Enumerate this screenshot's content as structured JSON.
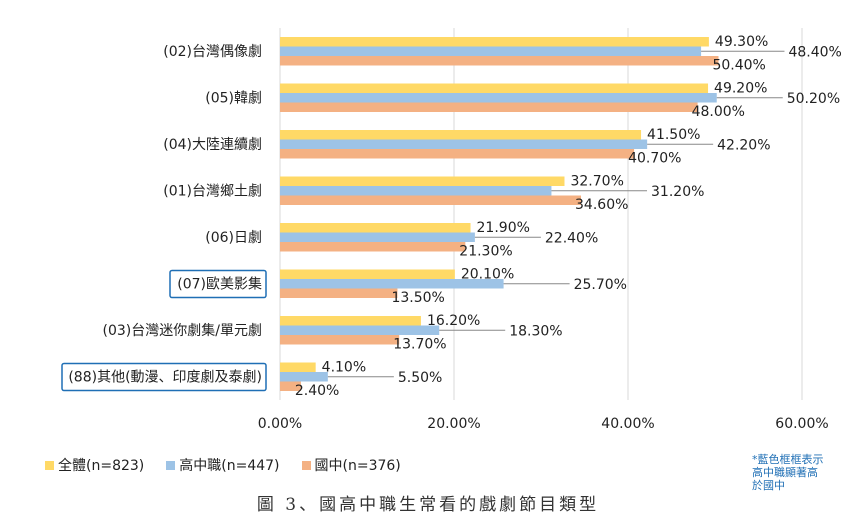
{
  "chart_data": {
    "type": "bar",
    "orientation": "horizontal",
    "title": "圖 3、國高中職生常看的戲劇節目類型",
    "categories": [
      "(02)台灣偶像劇",
      "(05)韓劇",
      "(04)大陸連續劇",
      "(01)台灣鄉土劇",
      "(06)日劇",
      "(07)歐美影集",
      "(03)台灣迷你劇集/單元劇",
      "(88)其他(動漫、印度劇及泰劇)"
    ],
    "highlighted": [
      false,
      false,
      false,
      false,
      false,
      true,
      false,
      true
    ],
    "series": [
      {
        "name": "全體(n=823)",
        "color": "#FFD966",
        "values": [
          49.3,
          49.2,
          41.5,
          32.7,
          21.9,
          20.1,
          16.2,
          4.1
        ],
        "labels": [
          "49.30%",
          "49.20%",
          "41.50%",
          "32.70%",
          "21.90%",
          "20.10%",
          "16.20%",
          "4.10%"
        ]
      },
      {
        "name": "高中職(n=447)",
        "color": "#9DC3E6",
        "values": [
          48.4,
          50.2,
          42.2,
          31.2,
          22.4,
          25.7,
          18.3,
          5.5
        ],
        "labels": [
          "48.40%",
          "50.20%",
          "42.20%",
          "31.20%",
          "22.40%",
          "25.70%",
          "18.30%",
          "5.50%"
        ]
      },
      {
        "name": "國中(n=376)",
        "color": "#F4B183",
        "values": [
          50.4,
          48.0,
          40.7,
          34.6,
          21.3,
          13.5,
          13.7,
          2.4
        ],
        "labels": [
          "50.40%",
          "48.00%",
          "40.70%",
          "34.60%",
          "21.30%",
          "13.50%",
          "13.70%",
          "2.40%"
        ]
      }
    ],
    "xlim": [
      0,
      60
    ],
    "xticks": [
      "0.00%",
      "20.00%",
      "40.00%",
      "60.00%"
    ],
    "xtick_values": [
      0,
      20,
      40,
      60
    ],
    "grid": true,
    "legend_position": "bottom-left"
  },
  "note": [
    "*藍色框框表示",
    "高中職顯著高",
    "於國中"
  ],
  "caption": "圖 3、國高中職生常看的戲劇節目類型"
}
